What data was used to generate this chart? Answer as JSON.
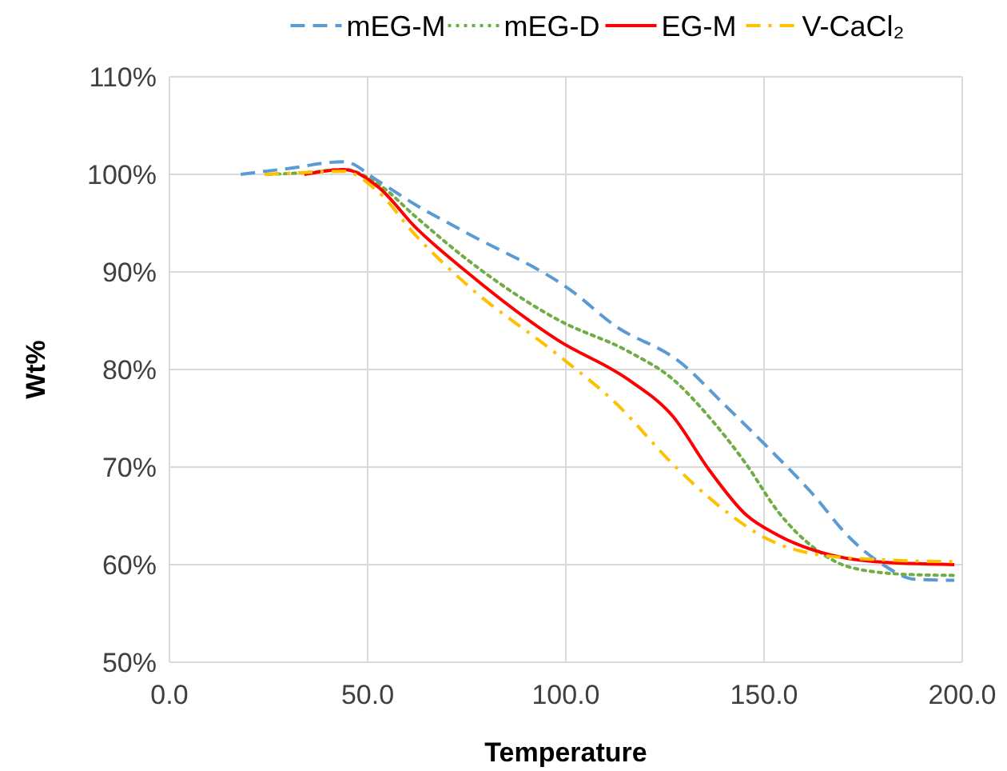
{
  "chart_data": {
    "type": "line",
    "xlabel": "Temperature",
    "ylabel": "Wt%",
    "xlim": [
      0,
      200
    ],
    "xticks": [
      {
        "value": 0,
        "label": "0.0"
      },
      {
        "value": 50,
        "label": "50.0"
      },
      {
        "value": 100,
        "label": "100.0"
      },
      {
        "value": 150,
        "label": "150.0"
      },
      {
        "value": 200,
        "label": "200.0"
      }
    ],
    "ylim": [
      50,
      110
    ],
    "yticks": [
      {
        "value": 50,
        "label": "50%"
      },
      {
        "value": 60,
        "label": "60%"
      },
      {
        "value": 70,
        "label": "70%"
      },
      {
        "value": 80,
        "label": "80%"
      },
      {
        "value": 90,
        "label": "90%"
      },
      {
        "value": 100,
        "label": "100%"
      },
      {
        "value": 110,
        "label": "110%"
      }
    ],
    "grid": true,
    "legend": "top",
    "marker": "none",
    "series": [
      {
        "name": "mEG-M",
        "color": "#5b9bd5",
        "line_style": "dashed",
        "x": [
          18,
          30,
          44,
          52.7,
          62,
          75,
          102,
          112,
          129,
          140,
          151,
          161.7,
          172,
          180,
          188,
          198
        ],
        "values": [
          100,
          100.6,
          101.3,
          99.3,
          96.9,
          94,
          87.9,
          84.6,
          80.7,
          76.4,
          72,
          67.5,
          62.6,
          60,
          58.5,
          58.4
        ]
      },
      {
        "name": "mEG-D",
        "color": "#70ad47",
        "line_style": "dotted",
        "x": [
          25,
          35,
          44,
          52.7,
          62,
          75,
          98,
          116,
          127,
          136,
          145.5,
          153.6,
          163,
          172,
          186,
          198
        ],
        "values": [
          100,
          100.2,
          100.5,
          99,
          95.7,
          91.3,
          85.1,
          81.8,
          79,
          75.2,
          70.3,
          65.4,
          61.6,
          59.7,
          59,
          58.9
        ]
      },
      {
        "name": "EG-M",
        "color": "#ff0000",
        "line_style": "solid",
        "x": [
          34,
          44,
          52.7,
          62,
          75,
          98,
          116,
          127,
          136,
          145.5,
          153.6,
          164,
          178,
          198
        ],
        "values": [
          100,
          100.5,
          98.7,
          94.6,
          90,
          83,
          78.9,
          75.2,
          69.8,
          65.1,
          63,
          61.3,
          60.3,
          60
        ]
      },
      {
        "name": "V-CaCl₂",
        "color": "#ffc000",
        "line_style": "dashdot",
        "x": [
          24,
          35,
          44,
          52.7,
          62,
          75,
          98,
          113,
          127,
          139,
          151,
          164,
          180,
          198
        ],
        "values": [
          100,
          100.2,
          100.3,
          98.2,
          93.8,
          88.7,
          81.5,
          76.4,
          70.3,
          65.9,
          62.6,
          61,
          60.5,
          60.3
        ]
      }
    ]
  }
}
